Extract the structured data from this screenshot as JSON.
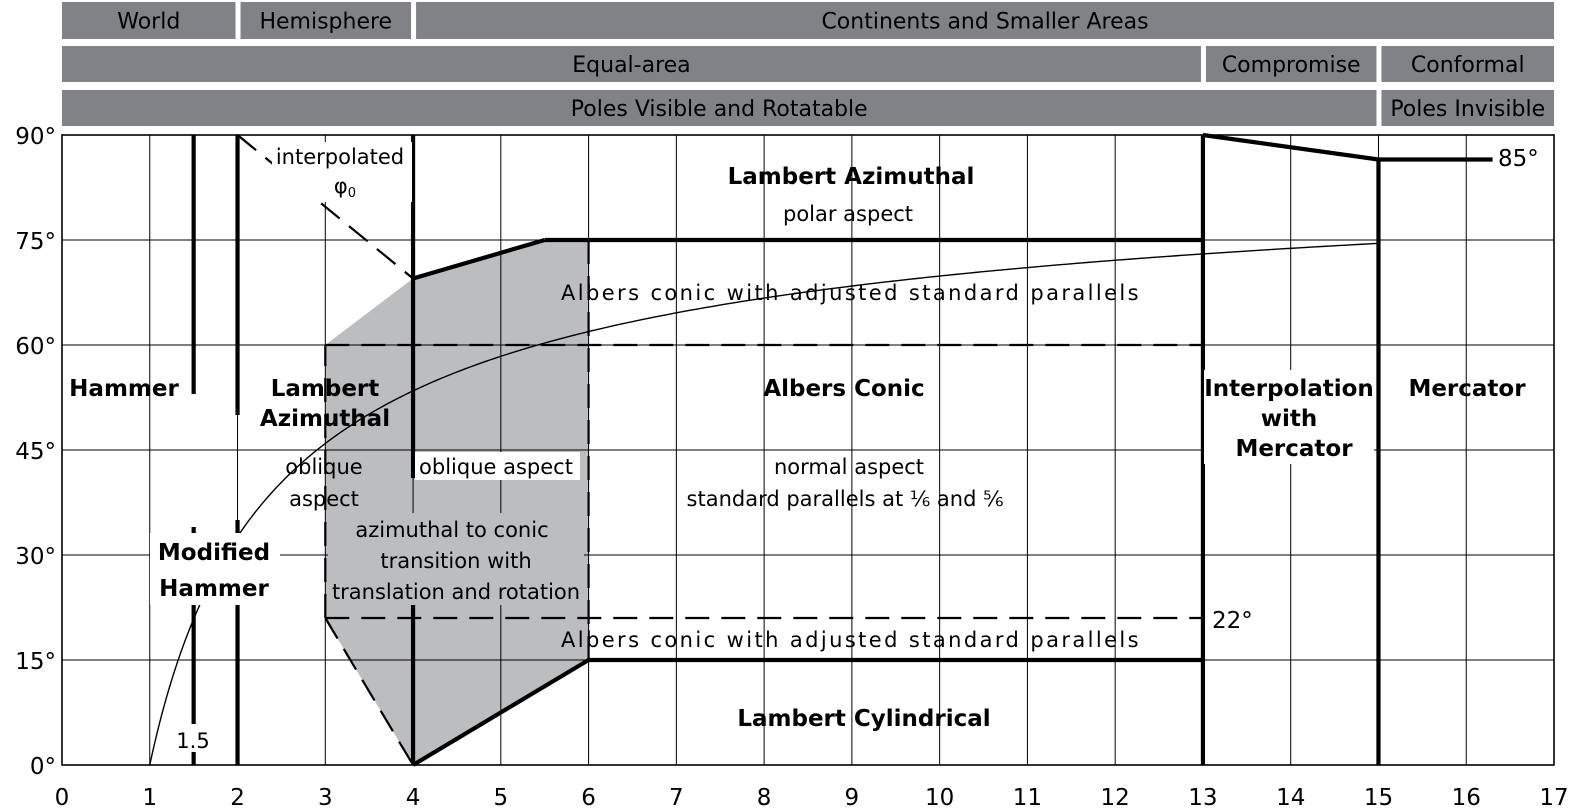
{
  "header_bands": {
    "row1": [
      {
        "label": "World",
        "from": 0,
        "to": 2
      },
      {
        "label": "Hemisphere",
        "from": 2,
        "to": 4
      },
      {
        "label": "Continents and Smaller Areas",
        "from": 4,
        "to": 17
      }
    ],
    "row2": [
      {
        "label": "Equal-area",
        "from": 0,
        "to": 13
      },
      {
        "label": "Compromise",
        "from": 13,
        "to": 15
      },
      {
        "label": "Conformal",
        "from": 15,
        "to": 17
      }
    ],
    "row3": [
      {
        "label": "Poles Visible and Rotatable",
        "from": 0,
        "to": 15
      },
      {
        "label": "Poles Invisible",
        "from": 15,
        "to": 17
      }
    ],
    "color": "#808285"
  },
  "axes": {
    "x_ticks": [
      "0",
      "1",
      "2",
      "3",
      "4",
      "5",
      "6",
      "7",
      "8",
      "9",
      "10",
      "11",
      "12",
      "13",
      "14",
      "15",
      "16",
      "17"
    ],
    "x_range": [
      0,
      17
    ],
    "y_ticks": [
      {
        "value": 0,
        "label": "0°"
      },
      {
        "value": 15,
        "label": "15°"
      },
      {
        "value": 30,
        "label": "30°"
      },
      {
        "value": 45,
        "label": "45°"
      },
      {
        "value": 60,
        "label": "60°"
      },
      {
        "value": 75,
        "label": "75°"
      },
      {
        "value": 90,
        "label": "90°"
      }
    ],
    "y_range": [
      0,
      90
    ],
    "grid": true
  },
  "shaded_region": {
    "color": "#bcbdbf",
    "points": [
      [
        3,
        21
      ],
      [
        3,
        60
      ],
      [
        4,
        69.5
      ],
      [
        5.5,
        75
      ],
      [
        6,
        75
      ],
      [
        6,
        15
      ],
      [
        4,
        0
      ]
    ]
  },
  "boundaries": {
    "thick": [
      [
        [
          1.5,
          0
        ],
        [
          1.5,
          34
        ]
      ],
      [
        [
          1.5,
          53
        ],
        [
          1.5,
          90
        ]
      ],
      [
        [
          2,
          0
        ],
        [
          2,
          35
        ]
      ],
      [
        [
          2,
          50
        ],
        [
          2,
          90
        ]
      ],
      [
        [
          4,
          0
        ],
        [
          4,
          36
        ]
      ],
      [
        [
          4,
          41
        ],
        [
          4,
          90
        ]
      ],
      [
        [
          4,
          0
        ],
        [
          6,
          15
        ]
      ],
      [
        [
          6,
          15
        ],
        [
          13,
          15
        ]
      ],
      [
        [
          4,
          69.5
        ],
        [
          5.5,
          75
        ]
      ],
      [
        [
          5.5,
          75
        ],
        [
          13,
          75
        ]
      ],
      [
        [
          13,
          0
        ],
        [
          13,
          90
        ]
      ],
      [
        [
          15,
          0
        ],
        [
          15,
          86.5
        ]
      ],
      [
        [
          13,
          90
        ],
        [
          15,
          86.5
        ]
      ],
      [
        [
          15,
          86.5
        ],
        [
          16.3,
          86.5
        ]
      ]
    ],
    "dashed": [
      [
        [
          2,
          90
        ],
        [
          4,
          69.5
        ]
      ],
      [
        [
          3,
          60
        ],
        [
          13,
          60
        ]
      ],
      [
        [
          3,
          21
        ],
        [
          13,
          21
        ]
      ],
      [
        [
          3,
          21
        ],
        [
          3,
          60
        ]
      ],
      [
        [
          3,
          21
        ],
        [
          4,
          0
        ]
      ],
      [
        [
          6,
          15
        ],
        [
          6,
          75
        ]
      ]
    ]
  },
  "curve": {
    "description_free": true,
    "asymptote": 90
  },
  "labels": {
    "hammer": "Hammer",
    "modified_hammer_1": "Modified",
    "modified_hammer_2": "Hammer",
    "lambert_az_1": "Lambert",
    "lambert_az_2": "Azimuthal",
    "oblique_1": "oblique",
    "oblique_2": "aspect",
    "oblique_aspect": "oblique aspect",
    "transition_1": "azimuthal to conic",
    "transition_2": "transition with",
    "transition_3": "translation and rotation",
    "interpolated": "interpolated",
    "phi0_symbol": "φ",
    "phi0_sub": "0",
    "lambert_polar_title": "Lambert Azimuthal",
    "lambert_polar_sub": "polar aspect",
    "albers_adjusted_top": "Albers conic with adjusted standard parallels",
    "albers_adjusted_bottom": "Albers conic with adjusted standard parallels",
    "albers_conic": "Albers Conic",
    "albers_normal": "normal aspect",
    "albers_parallels": "standard parallels at ⅙ and ⅚",
    "lambert_cyl": "Lambert Cylindrical",
    "interp_1": "Interpolation",
    "interp_2": "with",
    "interp_3": "Mercator",
    "mercator": "Mercator",
    "deg_85": "85°",
    "deg_22": "22°",
    "val_1_5": "1.5"
  }
}
